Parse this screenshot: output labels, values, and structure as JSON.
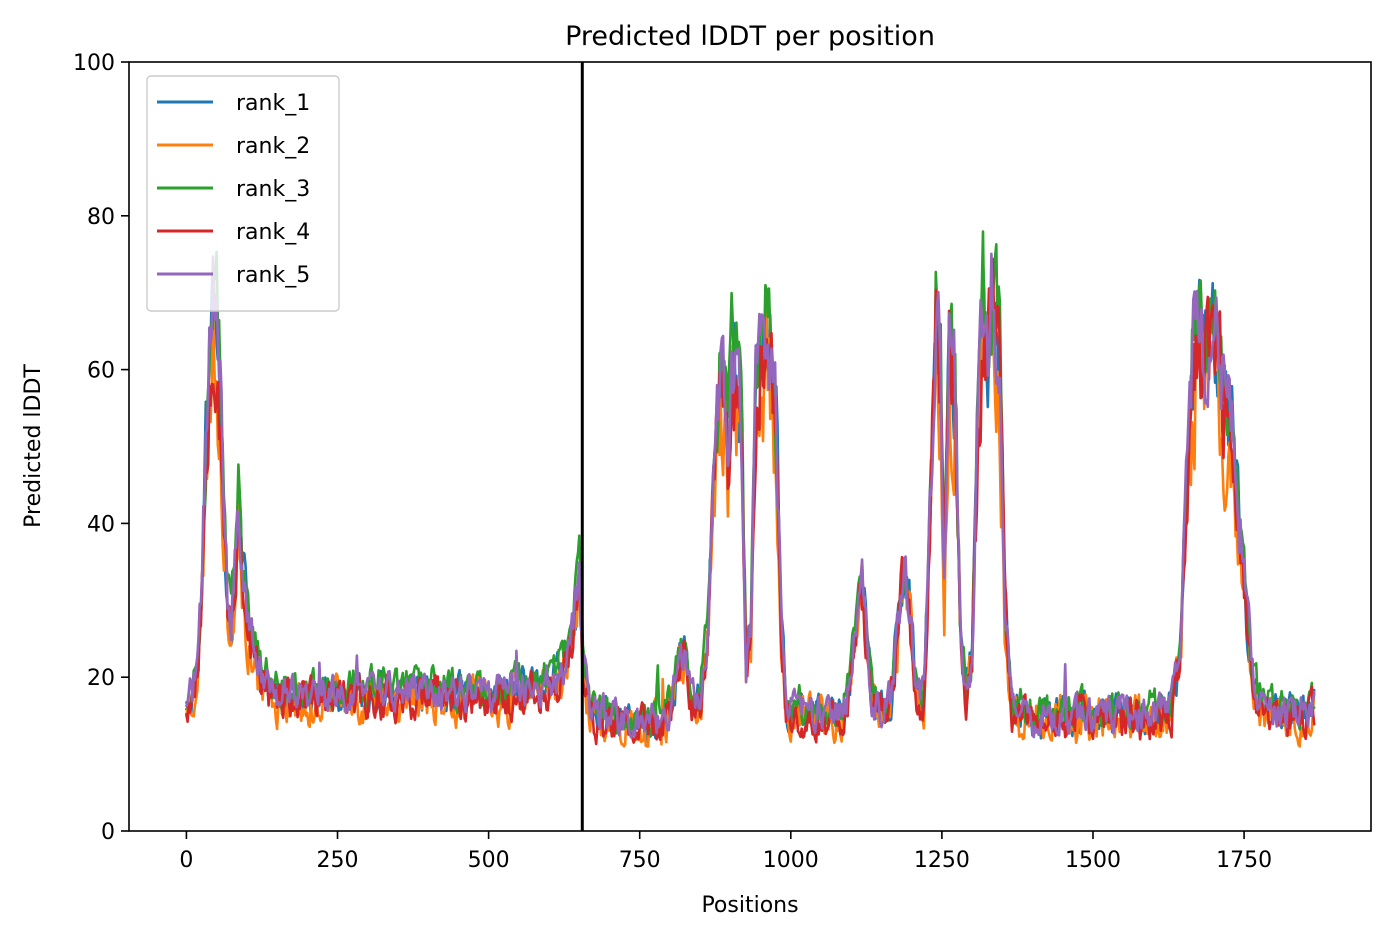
{
  "chart_data": {
    "type": "line",
    "title": "Predicted lDDT per position",
    "xlabel": "Positions",
    "ylabel": "Predicted lDDT",
    "xlim": [
      -95,
      1960
    ],
    "ylim": [
      0,
      100
    ],
    "x_ticks": [
      0,
      250,
      500,
      750,
      1000,
      1250,
      1500,
      1750
    ],
    "y_ticks": [
      0,
      20,
      40,
      60,
      80,
      100
    ],
    "grid": false,
    "legend_position": "top-left",
    "vline_x": 655,
    "vline_color": "#000000",
    "length": 1868,
    "profile": [
      [
        0,
        17
      ],
      [
        10,
        18
      ],
      [
        18,
        22
      ],
      [
        25,
        30
      ],
      [
        32,
        50
      ],
      [
        38,
        63
      ],
      [
        44,
        70
      ],
      [
        50,
        66
      ],
      [
        56,
        57
      ],
      [
        62,
        45
      ],
      [
        68,
        30
      ],
      [
        74,
        26
      ],
      [
        80,
        33
      ],
      [
        86,
        43
      ],
      [
        92,
        36
      ],
      [
        100,
        28
      ],
      [
        110,
        24
      ],
      [
        120,
        21
      ],
      [
        135,
        19
      ],
      [
        150,
        17.5
      ],
      [
        200,
        17.5
      ],
      [
        300,
        18
      ],
      [
        400,
        18
      ],
      [
        500,
        17.5
      ],
      [
        600,
        19
      ],
      [
        625,
        21
      ],
      [
        640,
        26
      ],
      [
        650,
        33
      ],
      [
        656,
        22
      ],
      [
        670,
        15
      ],
      [
        700,
        14.5
      ],
      [
        780,
        14
      ],
      [
        800,
        16
      ],
      [
        815,
        22
      ],
      [
        825,
        23
      ],
      [
        835,
        17
      ],
      [
        850,
        17
      ],
      [
        862,
        25
      ],
      [
        872,
        45
      ],
      [
        880,
        56
      ],
      [
        888,
        60
      ],
      [
        896,
        50
      ],
      [
        902,
        60
      ],
      [
        910,
        61
      ],
      [
        918,
        52
      ],
      [
        926,
        22
      ],
      [
        934,
        25
      ],
      [
        942,
        56
      ],
      [
        950,
        63
      ],
      [
        958,
        65
      ],
      [
        966,
        62
      ],
      [
        975,
        55
      ],
      [
        984,
        28
      ],
      [
        992,
        16
      ],
      [
        1000,
        15.5
      ],
      [
        1050,
        15
      ],
      [
        1080,
        15
      ],
      [
        1092,
        16
      ],
      [
        1102,
        22
      ],
      [
        1110,
        30
      ],
      [
        1118,
        32
      ],
      [
        1126,
        26
      ],
      [
        1134,
        17
      ],
      [
        1150,
        16
      ],
      [
        1165,
        17
      ],
      [
        1178,
        28
      ],
      [
        1188,
        35
      ],
      [
        1196,
        30
      ],
      [
        1206,
        19
      ],
      [
        1220,
        17
      ],
      [
        1232,
        45
      ],
      [
        1240,
        66
      ],
      [
        1248,
        60
      ],
      [
        1254,
        33
      ],
      [
        1262,
        64
      ],
      [
        1272,
        58
      ],
      [
        1280,
        28
      ],
      [
        1290,
        18
      ],
      [
        1300,
        22
      ],
      [
        1310,
        55
      ],
      [
        1318,
        68
      ],
      [
        1326,
        62
      ],
      [
        1336,
        70
      ],
      [
        1346,
        62
      ],
      [
        1354,
        30
      ],
      [
        1366,
        16
      ],
      [
        1400,
        15
      ],
      [
        1500,
        15
      ],
      [
        1600,
        15
      ],
      [
        1630,
        16
      ],
      [
        1645,
        24
      ],
      [
        1655,
        45
      ],
      [
        1665,
        62
      ],
      [
        1675,
        64
      ],
      [
        1685,
        63
      ],
      [
        1695,
        65
      ],
      [
        1705,
        62
      ],
      [
        1715,
        58
      ],
      [
        1725,
        55
      ],
      [
        1735,
        48
      ],
      [
        1745,
        38
      ],
      [
        1755,
        28
      ],
      [
        1765,
        20
      ],
      [
        1780,
        16
      ],
      [
        1800,
        15
      ],
      [
        1868,
        16
      ]
    ],
    "series": [
      {
        "name": "rank_1",
        "color": "#1f77b4",
        "seed": 11,
        "scale": 1.0,
        "offset": 0.0,
        "noise": 2.2
      },
      {
        "name": "rank_2",
        "color": "#ff7f0e",
        "seed": 23,
        "scale": 0.9,
        "offset": -0.5,
        "noise": 2.6
      },
      {
        "name": "rank_3",
        "color": "#2ca02c",
        "seed": 37,
        "scale": 1.02,
        "offset": 0.8,
        "noise": 2.2
      },
      {
        "name": "rank_4",
        "color": "#d62728",
        "seed": 53,
        "scale": 0.96,
        "offset": -0.6,
        "noise": 2.3
      },
      {
        "name": "rank_5",
        "color": "#9467bd",
        "seed": 71,
        "scale": 1.0,
        "offset": 0.2,
        "noise": 2.0
      }
    ]
  }
}
